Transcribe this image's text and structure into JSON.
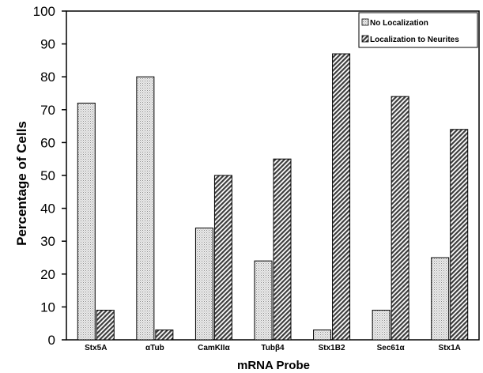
{
  "chart_data": {
    "type": "bar",
    "title": "",
    "xlabel": "mRNA Probe",
    "ylabel": "Percentage of Cells",
    "ylim": [
      0,
      100
    ],
    "yticks": [
      0,
      10,
      20,
      30,
      40,
      50,
      60,
      70,
      80,
      90,
      100
    ],
    "grid": false,
    "legend_position": "top-right",
    "categories": [
      "Stx5A",
      "αTub",
      "CamKIIα",
      "Tubβ4",
      "Stx1B2",
      "Sec61α",
      "Stx1A"
    ],
    "series": [
      {
        "name": "No Localization",
        "values": [
          72,
          80,
          34,
          24,
          3,
          9,
          25
        ],
        "pattern": "dots",
        "color": "#d9d9d9"
      },
      {
        "name": "Localization to Neurites",
        "values": [
          9,
          3,
          50,
          55,
          87,
          74,
          64
        ],
        "pattern": "diagonal-hatch",
        "color": "#555555"
      }
    ]
  }
}
